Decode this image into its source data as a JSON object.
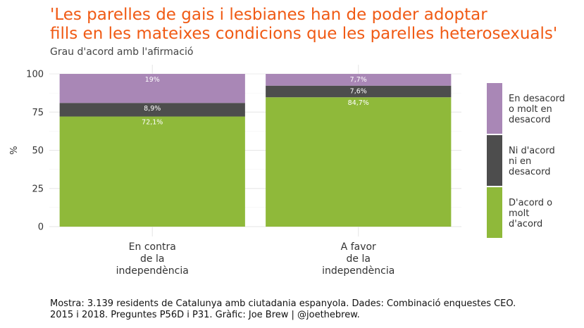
{
  "chart_data": {
    "type": "bar",
    "stacked": true,
    "title_lines": [
      "'Les parelles de gais i lesbianes han de poder adoptar",
      "fills en les mateixes condicions que les parelles heterosexuals'"
    ],
    "subtitle": "Grau d'acord amb l'afirmació",
    "ylabel": "%",
    "ylim": [
      0,
      100
    ],
    "yticks": [
      0,
      25,
      50,
      75,
      100
    ],
    "grid": true,
    "legend_position": "right",
    "categories": [
      [
        "En contra",
        "de la",
        "independència"
      ],
      [
        "A favor",
        "de la",
        "independència"
      ]
    ],
    "series": [
      {
        "name": [
          "D'acord o",
          "molt",
          "d'acord"
        ],
        "color": "#8fb93a",
        "values": [
          72.1,
          84.7
        ],
        "labels": [
          "72,1%",
          "84,7%"
        ]
      },
      {
        "name": [
          "Ni d'acord",
          "ni en",
          "desacord"
        ],
        "color": "#4d4d4d",
        "values": [
          8.9,
          7.6
        ],
        "labels": [
          "8,9%",
          "7,6%"
        ]
      },
      {
        "name": [
          "En desacord",
          "o molt en",
          "desacord"
        ],
        "color": "#a987b6",
        "values": [
          19,
          7.7
        ],
        "labels": [
          "19%",
          "7,7%"
        ]
      }
    ],
    "caption_lines": [
      "Mostra: 3.139 residents de Catalunya amb ciutadania espanyola. Dades: Combinació enquestes CEO.",
      "2015 i 2018. Preguntes P56D i P31. Gràfic: Joe Brew | @joethebrew."
    ]
  }
}
